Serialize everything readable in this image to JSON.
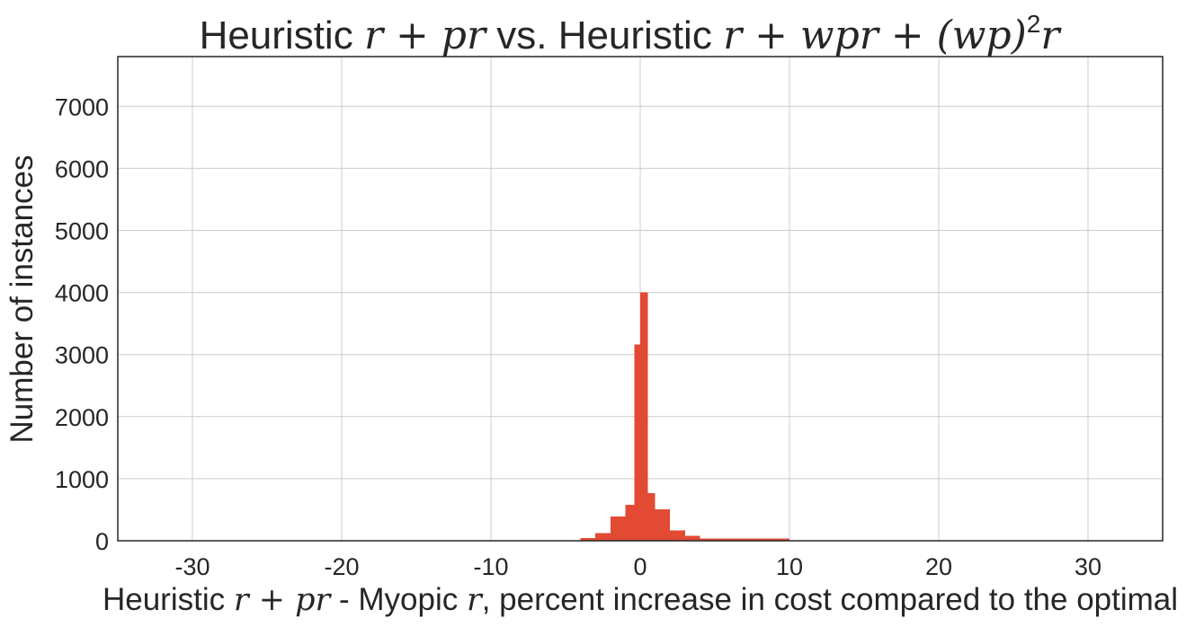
{
  "chart_data": {
    "type": "bar",
    "title_parts": [
      "Heuristic ",
      "r + pr",
      " vs. Heuristic ",
      "r + wpr + (wp)",
      "2",
      "r"
    ],
    "xlabel_parts": [
      "Heuristic ",
      "r + pr",
      " - Myopic ",
      "r",
      ", percent increase in cost compared to the optimal"
    ],
    "ylabel": "Number of instances",
    "xlim": [
      -35,
      35
    ],
    "ylim": [
      0,
      7800
    ],
    "xticks": [
      -30,
      -20,
      -10,
      0,
      10,
      20,
      30
    ],
    "xtick_labels": [
      "-30",
      "-20",
      "-10",
      "0",
      "10",
      "20",
      "30"
    ],
    "yticks": [
      0,
      1000,
      2000,
      3000,
      4000,
      5000,
      6000,
      7000
    ],
    "ytick_labels": [
      "0",
      "1000",
      "2000",
      "3000",
      "4000",
      "5000",
      "6000",
      "7000"
    ],
    "grid": true,
    "bar_color": "#e24a33",
    "bins": [
      {
        "x0": -4.0,
        "x1": -3.0,
        "count": 40
      },
      {
        "x0": -3.0,
        "x1": -2.0,
        "count": 120
      },
      {
        "x0": -2.0,
        "x1": -1.0,
        "count": 390
      },
      {
        "x0": -1.0,
        "x1": -0.4,
        "count": 580
      },
      {
        "x0": -0.4,
        "x1": 0.0,
        "count": 3160
      },
      {
        "x0": 0.0,
        "x1": 0.5,
        "count": 4000
      },
      {
        "x0": 0.5,
        "x1": 1.0,
        "count": 770
      },
      {
        "x0": 1.0,
        "x1": 2.0,
        "count": 510
      },
      {
        "x0": 2.0,
        "x1": 3.0,
        "count": 170
      },
      {
        "x0": 3.0,
        "x1": 4.0,
        "count": 80
      },
      {
        "x0": 4.0,
        "x1": 10.0,
        "count": 35
      }
    ]
  }
}
